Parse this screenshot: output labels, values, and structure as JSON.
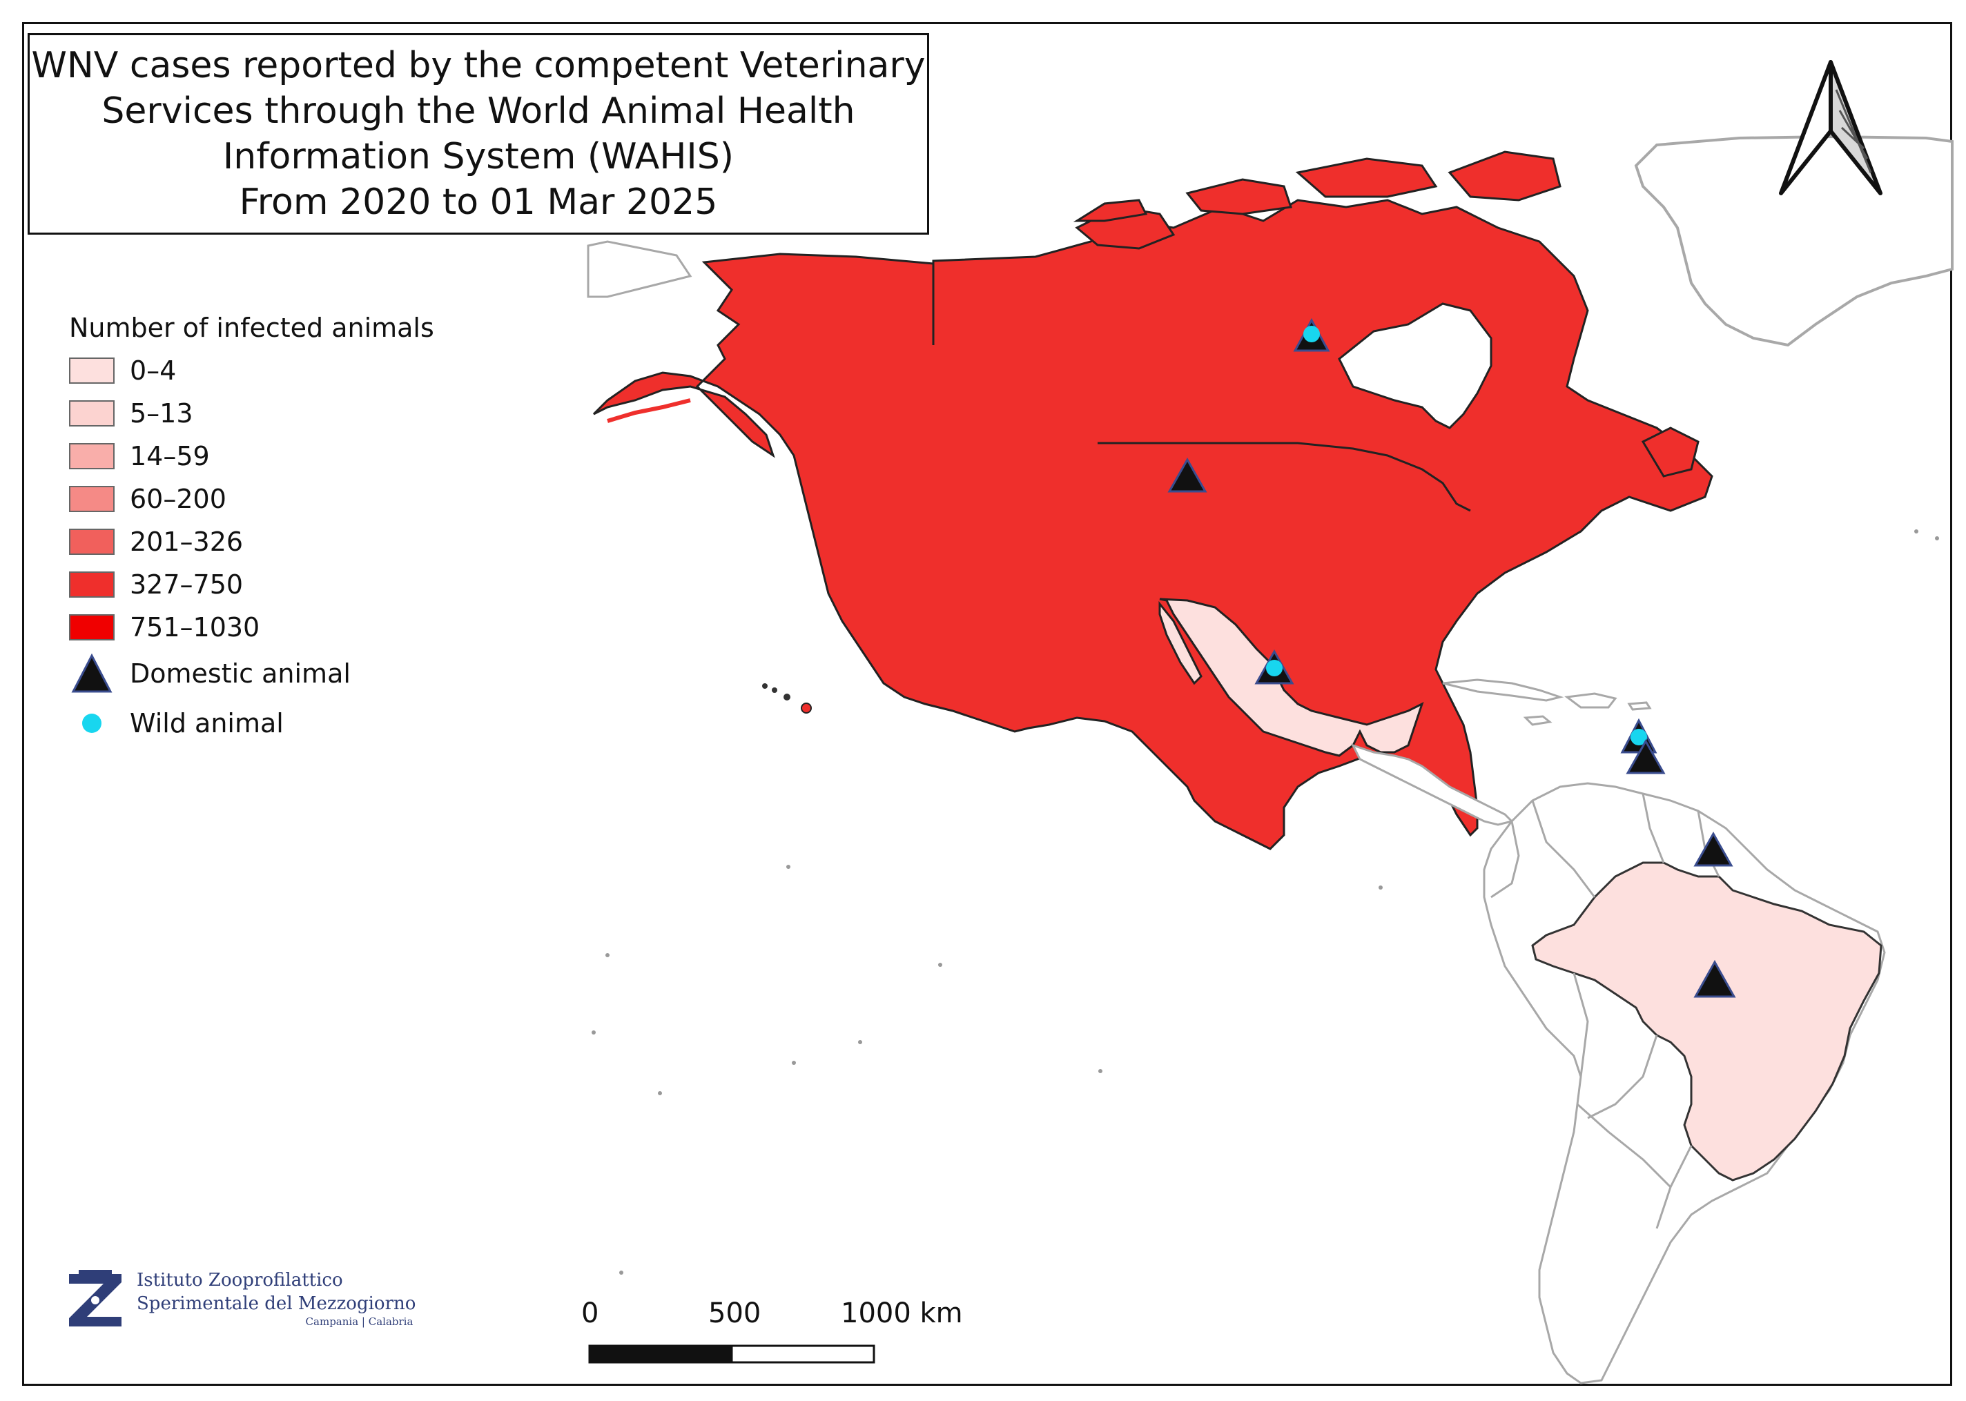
{
  "title": {
    "lines": [
      "WNV cases reported by the competent Veterinary",
      "Services through the World Animal Health",
      "Information System (WAHIS)",
      "From 2020 to 01 Mar 2025"
    ]
  },
  "legend": {
    "title": "Number of infected animals",
    "classes": [
      {
        "label": "0–4",
        "color": "#fde0de"
      },
      {
        "label": "5–13",
        "color": "#fcd3d0"
      },
      {
        "label": "14–59",
        "color": "#f9aeaa"
      },
      {
        "label": "60–200",
        "color": "#f58a86"
      },
      {
        "label": "201–326",
        "color": "#f1605c"
      },
      {
        "label": "327–750",
        "color": "#ef2f2c"
      },
      {
        "label": "751–1030",
        "color": "#f00000"
      }
    ],
    "symbols": [
      {
        "label": "Domestic animal",
        "shape": "triangle",
        "color": "#111111",
        "stroke": "#3a4d8f"
      },
      {
        "label": "Wild animal",
        "shape": "circle",
        "color": "#18d6ef"
      }
    ]
  },
  "map": {
    "country_fill": {
      "canada_usa": "#ef2f2c",
      "mexico": "#fde0de",
      "brazil": "#fde0de",
      "other": "#ffffff"
    },
    "markers": [
      {
        "location": "Canada (Manitoba)",
        "domestic": true,
        "wild": true
      },
      {
        "location": "United States",
        "domestic": true,
        "wild": false
      },
      {
        "location": "Mexico",
        "domestic": true,
        "wild": true
      },
      {
        "location": "Guadeloupe",
        "domestic": true,
        "wild": true
      },
      {
        "location": "Martinique",
        "domestic": true,
        "wild": false
      },
      {
        "location": "French Guiana",
        "domestic": true,
        "wild": false
      },
      {
        "location": "Brazil",
        "domestic": true,
        "wild": false
      }
    ]
  },
  "scale_bar": {
    "labels": [
      "0",
      "500",
      "1000 km"
    ]
  },
  "north_arrow": {
    "icon": "north-arrow-icon"
  },
  "logo": {
    "line1": "Istituto Zooprofilattico",
    "line2": "Sperimentale del Mezzogiorno",
    "line3": "Campania | Calabria"
  }
}
